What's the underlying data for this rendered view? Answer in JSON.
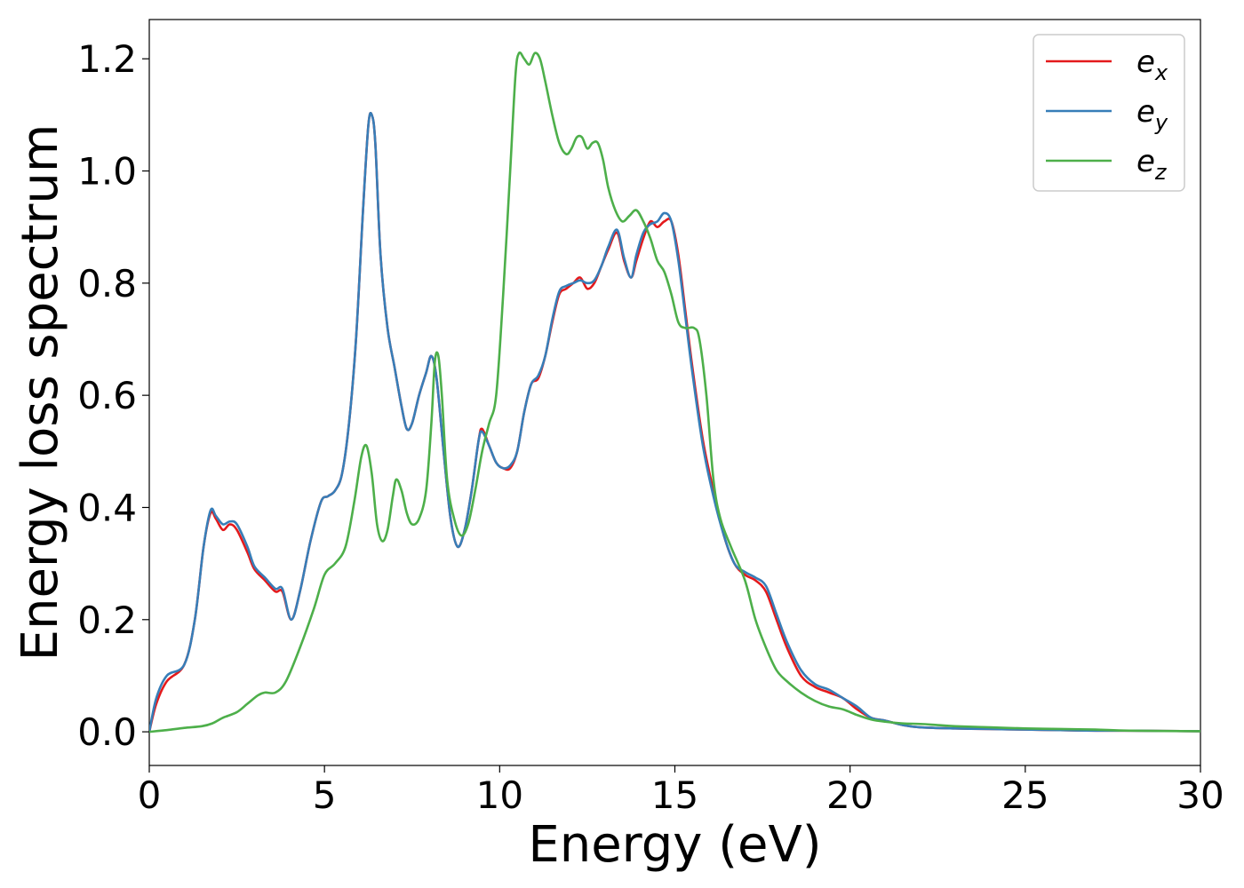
{
  "chart_data": {
    "type": "line",
    "xlabel": "Energy (eV)",
    "ylabel": "Energy loss spectrum",
    "xlim": [
      0,
      30
    ],
    "ylim": [
      -0.06,
      1.27
    ],
    "xticks": [
      0,
      5,
      10,
      15,
      20,
      25,
      30
    ],
    "yticks": [
      0.0,
      0.2,
      0.4,
      0.6,
      0.8,
      1.0,
      1.2
    ],
    "xtick_labels": [
      "0",
      "5",
      "10",
      "15",
      "20",
      "25",
      "30"
    ],
    "ytick_labels": [
      "0.0",
      "0.2",
      "0.4",
      "0.6",
      "0.8",
      "1.0",
      "1.2"
    ],
    "grid": false,
    "legend_position": "top-right",
    "series": [
      {
        "name": "e_x",
        "label_base": "e",
        "label_sub": "x",
        "color": "#e41a1c",
        "x": [
          0,
          0.2,
          0.5,
          1.0,
          1.3,
          1.55,
          1.75,
          1.9,
          2.1,
          2.3,
          2.5,
          2.8,
          3.0,
          3.3,
          3.6,
          3.8,
          4.05,
          4.3,
          4.6,
          4.9,
          5.1,
          5.3,
          5.5,
          5.7,
          5.9,
          6.1,
          6.25,
          6.35,
          6.45,
          6.6,
          6.8,
          7.0,
          7.2,
          7.35,
          7.5,
          7.7,
          7.9,
          8.05,
          8.2,
          8.4,
          8.6,
          8.8,
          9.0,
          9.2,
          9.4,
          9.5,
          9.7,
          9.9,
          10.1,
          10.3,
          10.5,
          10.7,
          10.9,
          11.1,
          11.3,
          11.5,
          11.7,
          11.9,
          12.1,
          12.3,
          12.5,
          12.7,
          12.9,
          13.1,
          13.35,
          13.55,
          13.75,
          13.9,
          14.1,
          14.3,
          14.5,
          14.7,
          14.9,
          15.1,
          15.3,
          15.5,
          15.8,
          16.1,
          16.4,
          16.7,
          17.0,
          17.3,
          17.6,
          17.9,
          18.2,
          18.6,
          19.0,
          19.4,
          19.8,
          20.2,
          20.6,
          21.0,
          21.5,
          22.0,
          23.0,
          24.0,
          25.0,
          26.0,
          27.0,
          28.0,
          30.0
        ],
        "y": [
          0.0,
          0.05,
          0.09,
          0.12,
          0.2,
          0.33,
          0.39,
          0.38,
          0.36,
          0.37,
          0.36,
          0.32,
          0.29,
          0.27,
          0.25,
          0.25,
          0.2,
          0.25,
          0.34,
          0.41,
          0.42,
          0.43,
          0.46,
          0.55,
          0.7,
          0.93,
          1.08,
          1.1,
          1.05,
          0.85,
          0.72,
          0.65,
          0.58,
          0.54,
          0.55,
          0.6,
          0.64,
          0.67,
          0.63,
          0.5,
          0.38,
          0.33,
          0.36,
          0.43,
          0.52,
          0.54,
          0.51,
          0.48,
          0.47,
          0.47,
          0.5,
          0.57,
          0.62,
          0.63,
          0.67,
          0.73,
          0.78,
          0.79,
          0.8,
          0.81,
          0.79,
          0.8,
          0.83,
          0.86,
          0.89,
          0.84,
          0.81,
          0.84,
          0.88,
          0.91,
          0.9,
          0.91,
          0.91,
          0.85,
          0.75,
          0.65,
          0.52,
          0.43,
          0.35,
          0.3,
          0.28,
          0.27,
          0.25,
          0.2,
          0.15,
          0.1,
          0.08,
          0.07,
          0.06,
          0.04,
          0.025,
          0.02,
          0.012,
          0.008,
          0.006,
          0.005,
          0.004,
          0.003,
          0.002,
          0.002,
          0.001
        ]
      },
      {
        "name": "e_y",
        "label_base": "e",
        "label_sub": "y",
        "color": "#377eb8",
        "x": [
          0,
          0.2,
          0.5,
          1.0,
          1.3,
          1.55,
          1.75,
          1.9,
          2.1,
          2.3,
          2.5,
          2.8,
          3.0,
          3.3,
          3.6,
          3.8,
          4.05,
          4.3,
          4.6,
          4.9,
          5.1,
          5.3,
          5.5,
          5.7,
          5.9,
          6.1,
          6.25,
          6.35,
          6.45,
          6.6,
          6.8,
          7.0,
          7.2,
          7.35,
          7.5,
          7.7,
          7.9,
          8.05,
          8.2,
          8.4,
          8.6,
          8.8,
          9.0,
          9.2,
          9.4,
          9.5,
          9.7,
          9.9,
          10.1,
          10.3,
          10.5,
          10.7,
          10.9,
          11.1,
          11.3,
          11.5,
          11.7,
          11.9,
          12.1,
          12.3,
          12.5,
          12.7,
          12.9,
          13.1,
          13.35,
          13.55,
          13.75,
          13.9,
          14.1,
          14.3,
          14.5,
          14.7,
          14.9,
          15.1,
          15.3,
          15.5,
          15.8,
          16.1,
          16.4,
          16.7,
          17.0,
          17.3,
          17.6,
          17.9,
          18.2,
          18.6,
          19.0,
          19.4,
          19.8,
          20.2,
          20.6,
          21.0,
          21.5,
          22.0,
          23.0,
          24.0,
          25.0,
          26.0,
          27.0,
          28.0,
          30.0
        ],
        "y": [
          0.0,
          0.06,
          0.1,
          0.12,
          0.2,
          0.33,
          0.395,
          0.385,
          0.37,
          0.375,
          0.37,
          0.33,
          0.295,
          0.275,
          0.255,
          0.255,
          0.2,
          0.25,
          0.34,
          0.41,
          0.42,
          0.43,
          0.46,
          0.55,
          0.7,
          0.93,
          1.08,
          1.1,
          1.05,
          0.85,
          0.72,
          0.65,
          0.58,
          0.54,
          0.55,
          0.6,
          0.64,
          0.67,
          0.63,
          0.5,
          0.38,
          0.33,
          0.36,
          0.43,
          0.52,
          0.535,
          0.51,
          0.48,
          0.47,
          0.475,
          0.5,
          0.57,
          0.62,
          0.635,
          0.67,
          0.735,
          0.785,
          0.795,
          0.8,
          0.805,
          0.8,
          0.805,
          0.83,
          0.865,
          0.895,
          0.845,
          0.81,
          0.85,
          0.89,
          0.905,
          0.91,
          0.925,
          0.91,
          0.84,
          0.74,
          0.64,
          0.51,
          0.42,
          0.35,
          0.3,
          0.285,
          0.275,
          0.26,
          0.21,
          0.16,
          0.11,
          0.085,
          0.075,
          0.06,
          0.045,
          0.025,
          0.02,
          0.012,
          0.008,
          0.006,
          0.005,
          0.004,
          0.003,
          0.002,
          0.002,
          0.001
        ]
      },
      {
        "name": "e_z",
        "label_base": "e",
        "label_sub": "z",
        "color": "#4daf4a",
        "x": [
          0,
          0.5,
          1.0,
          1.5,
          1.8,
          2.1,
          2.5,
          2.8,
          3.1,
          3.3,
          3.6,
          3.9,
          4.3,
          4.7,
          5.0,
          5.3,
          5.6,
          5.85,
          6.05,
          6.2,
          6.35,
          6.5,
          6.65,
          6.8,
          6.95,
          7.05,
          7.2,
          7.35,
          7.5,
          7.7,
          7.9,
          8.05,
          8.15,
          8.25,
          8.35,
          8.5,
          8.7,
          8.9,
          9.1,
          9.3,
          9.5,
          9.7,
          9.9,
          10.1,
          10.3,
          10.45,
          10.55,
          10.7,
          10.85,
          11.0,
          11.15,
          11.3,
          11.5,
          11.7,
          11.9,
          12.05,
          12.2,
          12.35,
          12.5,
          12.65,
          12.8,
          12.95,
          13.1,
          13.3,
          13.5,
          13.7,
          13.9,
          14.1,
          14.3,
          14.5,
          14.7,
          14.9,
          15.1,
          15.3,
          15.55,
          15.7,
          15.9,
          16.1,
          16.3,
          16.6,
          17.0,
          17.3,
          17.6,
          17.9,
          18.2,
          18.6,
          19.0,
          19.4,
          19.8,
          20.2,
          20.6,
          21.0,
          21.5,
          22.0,
          22.5,
          23.0,
          24.0,
          25.0,
          26.0,
          27.0,
          28.0,
          30.0
        ],
        "y": [
          0.0,
          0.003,
          0.007,
          0.01,
          0.015,
          0.025,
          0.035,
          0.05,
          0.065,
          0.07,
          0.07,
          0.09,
          0.15,
          0.22,
          0.28,
          0.3,
          0.33,
          0.41,
          0.49,
          0.51,
          0.46,
          0.37,
          0.34,
          0.36,
          0.42,
          0.45,
          0.43,
          0.39,
          0.37,
          0.38,
          0.43,
          0.55,
          0.66,
          0.67,
          0.6,
          0.45,
          0.38,
          0.35,
          0.37,
          0.43,
          0.5,
          0.55,
          0.6,
          0.78,
          1.0,
          1.17,
          1.21,
          1.2,
          1.19,
          1.21,
          1.2,
          1.16,
          1.1,
          1.05,
          1.03,
          1.04,
          1.06,
          1.06,
          1.04,
          1.05,
          1.05,
          1.02,
          0.97,
          0.93,
          0.91,
          0.92,
          0.93,
          0.91,
          0.88,
          0.84,
          0.82,
          0.78,
          0.73,
          0.72,
          0.72,
          0.7,
          0.6,
          0.45,
          0.38,
          0.33,
          0.27,
          0.2,
          0.15,
          0.11,
          0.09,
          0.07,
          0.055,
          0.045,
          0.04,
          0.03,
          0.022,
          0.018,
          0.015,
          0.014,
          0.012,
          0.01,
          0.008,
          0.006,
          0.005,
          0.004,
          0.002,
          0.001
        ]
      }
    ]
  }
}
